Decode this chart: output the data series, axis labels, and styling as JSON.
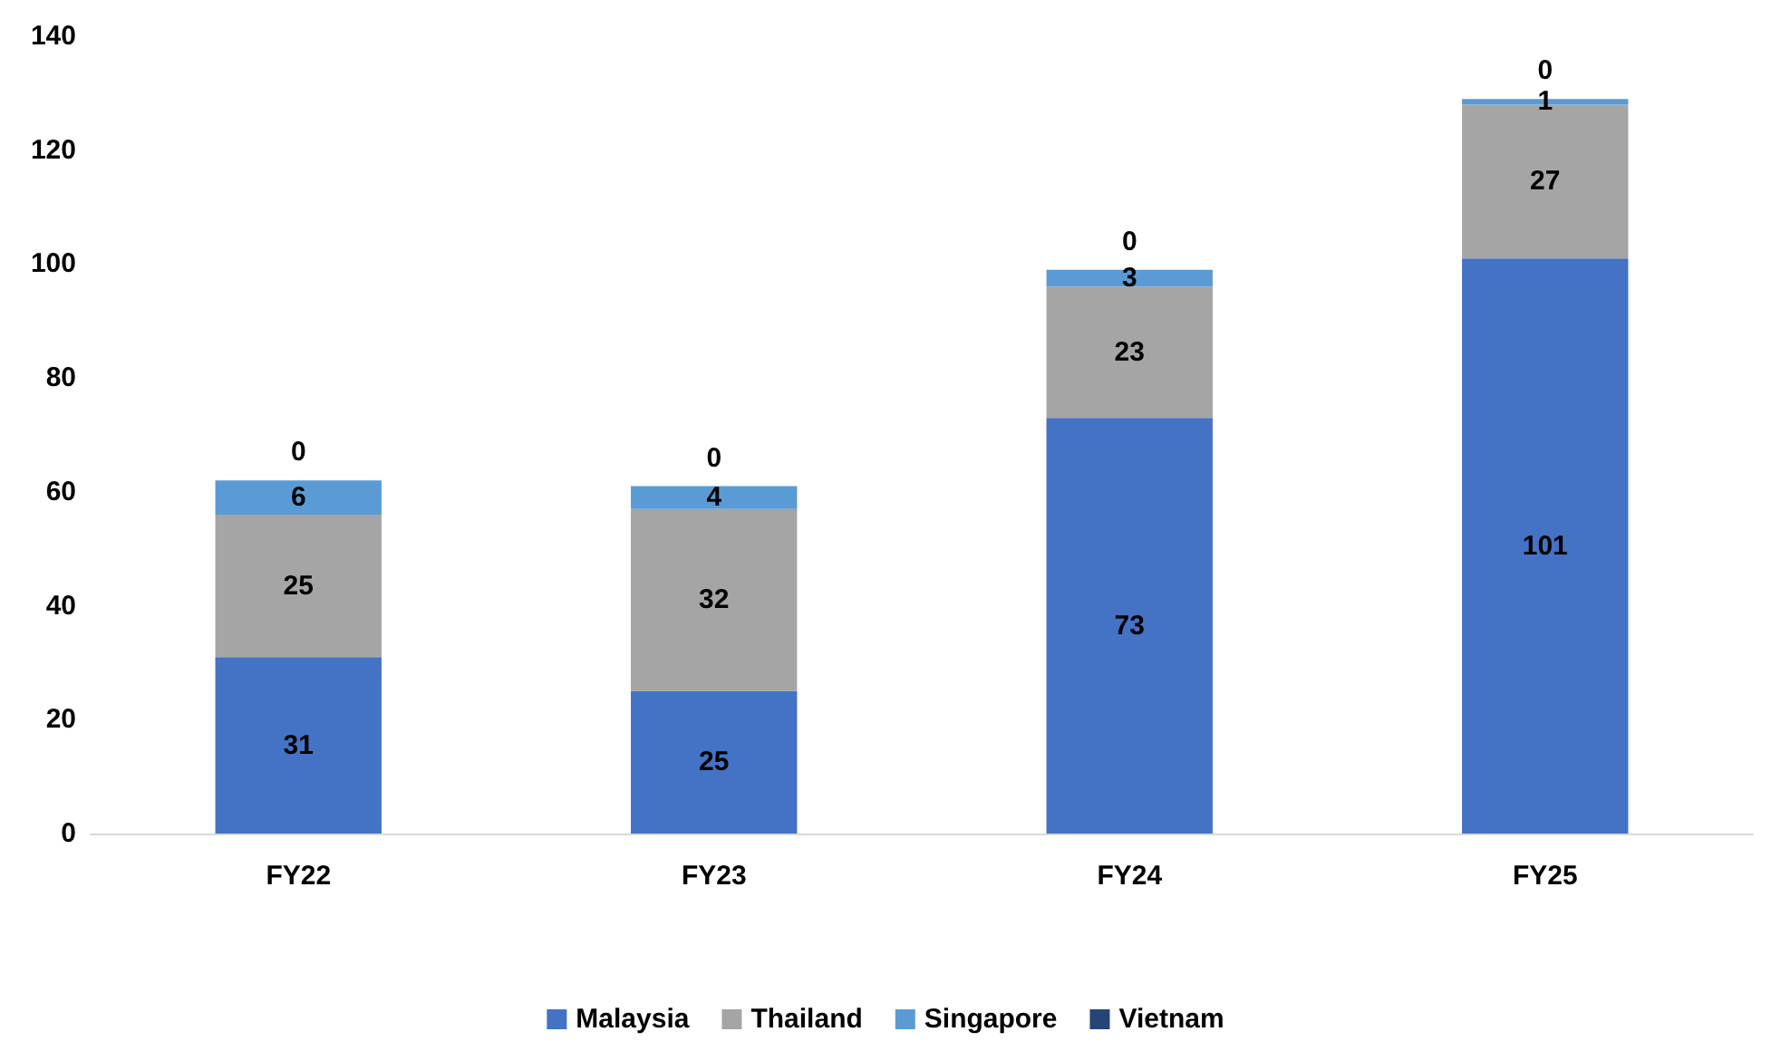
{
  "chart_data": {
    "type": "bar",
    "stacked": true,
    "categories": [
      "FY22",
      "FY23",
      "FY24",
      "FY25"
    ],
    "series": [
      {
        "name": "Malaysia",
        "color": "#4472c4",
        "values": [
          31,
          25,
          73,
          101
        ]
      },
      {
        "name": "Thailand",
        "color": "#a5a5a5",
        "values": [
          25,
          32,
          23,
          27
        ]
      },
      {
        "name": "Singapore",
        "color": "#5b9bd5",
        "values": [
          6,
          4,
          3,
          1
        ]
      },
      {
        "name": "Vietnam",
        "color": "#264478",
        "values": [
          0,
          0,
          0,
          0
        ]
      }
    ],
    "ylim": [
      0,
      140
    ],
    "yticks": [
      0,
      20,
      40,
      60,
      80,
      100,
      120,
      140
    ],
    "grid": false,
    "legend": "bottom",
    "data_labels": true
  }
}
